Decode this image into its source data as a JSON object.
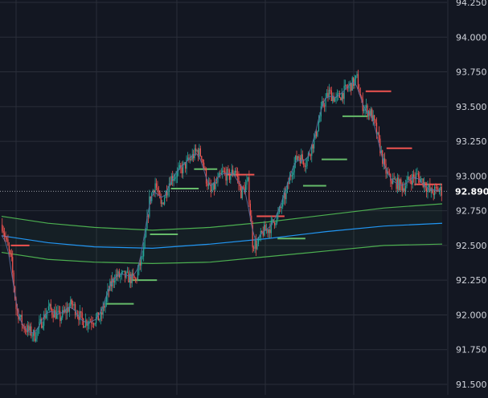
{
  "chart_data": {
    "type": "line",
    "subtype": "candlestick",
    "title": "",
    "xlabel": "",
    "ylabel": "",
    "ylim": [
      91.5,
      94.25
    ],
    "y_ticks": [
      "94.250",
      "94.000",
      "93.750",
      "93.500",
      "93.250",
      "93.000",
      "92.750",
      "92.500",
      "92.250",
      "92.000",
      "91.750",
      "91.500"
    ],
    "y_tick_values": [
      94.25,
      94.0,
      93.75,
      93.5,
      93.25,
      93.0,
      92.75,
      92.5,
      92.25,
      92.0,
      91.75,
      91.5
    ],
    "last_price": 92.89,
    "last_price_label": "92.890",
    "grid": true,
    "n_bars": 380,
    "price_path": {
      "x": [
        0,
        8,
        12,
        18,
        28,
        40,
        50,
        60,
        70,
        85,
        92,
        97,
        105,
        115,
        122,
        127,
        132,
        137,
        145,
        155,
        162,
        168,
        172,
        176,
        180,
        185,
        190,
        196,
        201,
        206,
        212,
        216,
        220,
        225,
        230,
        238,
        245,
        250,
        255,
        262,
        270,
        276,
        282,
        288,
        294,
        300,
        306,
        310,
        314,
        318,
        322,
        326,
        330,
        334,
        340,
        346,
        352,
        358,
        364,
        370,
        376,
        380
      ],
      "y": [
        92.65,
        92.38,
        92.05,
        91.92,
        91.85,
        92.05,
        91.98,
        92.08,
        91.95,
        91.98,
        92.18,
        92.28,
        92.28,
        92.25,
        92.45,
        92.82,
        92.95,
        92.78,
        92.98,
        93.05,
        93.12,
        93.18,
        93.15,
        92.98,
        92.88,
        92.95,
        93.02,
        93.0,
        93.05,
        92.88,
        92.95,
        92.52,
        92.5,
        92.6,
        92.62,
        92.72,
        92.88,
        93.05,
        93.15,
        93.1,
        93.28,
        93.5,
        93.6,
        93.55,
        93.6,
        93.65,
        93.7,
        93.52,
        93.48,
        93.45,
        93.35,
        93.2,
        93.05,
        92.98,
        92.95,
        92.92,
        92.98,
        93.0,
        92.95,
        92.88,
        92.9,
        92.89
      ]
    },
    "series": [
      {
        "kind": "ma",
        "color": "#2196f3",
        "x": [
          0,
          40,
          80,
          130,
          180,
          230,
          280,
          330,
          380
        ],
        "values": [
          92.57,
          92.52,
          92.49,
          92.48,
          92.51,
          92.55,
          92.6,
          92.64,
          92.66
        ]
      },
      {
        "kind": "band_upper",
        "color": "#4caf50",
        "x": [
          0,
          40,
          80,
          130,
          180,
          230,
          280,
          330,
          380
        ],
        "values": [
          92.71,
          92.66,
          92.63,
          92.61,
          92.63,
          92.67,
          92.72,
          92.77,
          92.8
        ]
      },
      {
        "kind": "band_lower",
        "color": "#4caf50",
        "x": [
          0,
          40,
          80,
          130,
          180,
          230,
          280,
          330,
          380
        ],
        "values": [
          92.45,
          92.4,
          92.38,
          92.37,
          92.38,
          92.42,
          92.46,
          92.5,
          92.51
        ]
      }
    ],
    "levels": [
      {
        "x": [
          8,
          24
        ],
        "y": 92.5,
        "color": "#ef5350"
      },
      {
        "x": [
          90,
          114
        ],
        "y": 92.08,
        "color": "#66bb6a"
      },
      {
        "x": [
          112,
          134
        ],
        "y": 92.25,
        "color": "#66bb6a"
      },
      {
        "x": [
          128,
          152
        ],
        "y": 92.58,
        "color": "#66bb6a"
      },
      {
        "x": [
          146,
          170
        ],
        "y": 92.91,
        "color": "#66bb6a"
      },
      {
        "x": [
          166,
          186
        ],
        "y": 93.05,
        "color": "#66bb6a"
      },
      {
        "x": [
          194,
          218
        ],
        "y": 93.01,
        "color": "#ef5350"
      },
      {
        "x": [
          220,
          244
        ],
        "y": 92.71,
        "color": "#ef5350"
      },
      {
        "x": [
          238,
          262
        ],
        "y": 92.55,
        "color": "#66bb6a"
      },
      {
        "x": [
          260,
          280
        ],
        "y": 92.93,
        "color": "#66bb6a"
      },
      {
        "x": [
          276,
          298
        ],
        "y": 93.12,
        "color": "#66bb6a"
      },
      {
        "x": [
          294,
          316
        ],
        "y": 93.43,
        "color": "#66bb6a"
      },
      {
        "x": [
          314,
          336
        ],
        "y": 93.61,
        "color": "#ef5350"
      },
      {
        "x": [
          332,
          354
        ],
        "y": 93.2,
        "color": "#ef5350"
      },
      {
        "x": [
          356,
          380
        ],
        "y": 92.94,
        "color": "#ef5350"
      }
    ],
    "colors": {
      "background": "#131722",
      "grid": "#2a2e39",
      "axis_text": "#d1d4dc",
      "up": "#26a69a",
      "down": "#ef5350",
      "wick_overlay": "#5b6b9e",
      "last_price_badge_bg": "#131722",
      "last_price_badge_text": "#ffffff"
    }
  }
}
